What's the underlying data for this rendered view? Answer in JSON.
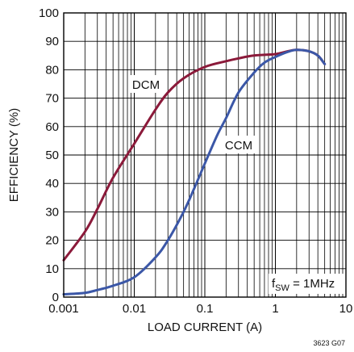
{
  "chart_data": {
    "type": "line",
    "xlabel": "LOAD CURRENT (A)",
    "ylabel": "EFFICIENCY (%)",
    "xscale": "log",
    "xlim": [
      0.001,
      10
    ],
    "ylim": [
      0,
      100
    ],
    "grid": true,
    "x_ticks": [
      "0.001",
      "0.01",
      "0.1",
      "1",
      "10"
    ],
    "y_ticks": [
      "0",
      "10",
      "20",
      "30",
      "40",
      "50",
      "60",
      "70",
      "80",
      "90",
      "100"
    ],
    "series": [
      {
        "name": "DCM",
        "color": "#8b1a3a",
        "x": [
          0.001,
          0.002,
          0.003,
          0.005,
          0.01,
          0.02,
          0.03,
          0.05,
          0.1,
          0.2,
          0.3,
          0.5,
          1,
          1.5,
          2,
          3,
          4,
          5
        ],
        "y": [
          13,
          23,
          31,
          42,
          54,
          66,
          72,
          77,
          81,
          83,
          84,
          85,
          85.5,
          86.5,
          87,
          86.5,
          85,
          82
        ]
      },
      {
        "name": "CCM",
        "color": "#3b57a7",
        "x": [
          0.001,
          0.002,
          0.003,
          0.005,
          0.01,
          0.02,
          0.03,
          0.05,
          0.07,
          0.1,
          0.15,
          0.2,
          0.3,
          0.5,
          0.7,
          1,
          1.5,
          2,
          3,
          4,
          5
        ],
        "y": [
          1,
          1.5,
          2.5,
          4,
          7,
          14,
          20,
          30,
          38,
          47,
          57,
          63,
          72,
          79,
          82.5,
          84.5,
          86.3,
          87,
          86.5,
          85,
          82
        ]
      }
    ],
    "annotations": {
      "dcm": "DCM",
      "ccm": "CCM",
      "freq_prefix": "f",
      "freq_sub": "SW",
      "freq_suffix": " = 1MHz",
      "figure_id": "3623 G07"
    }
  }
}
